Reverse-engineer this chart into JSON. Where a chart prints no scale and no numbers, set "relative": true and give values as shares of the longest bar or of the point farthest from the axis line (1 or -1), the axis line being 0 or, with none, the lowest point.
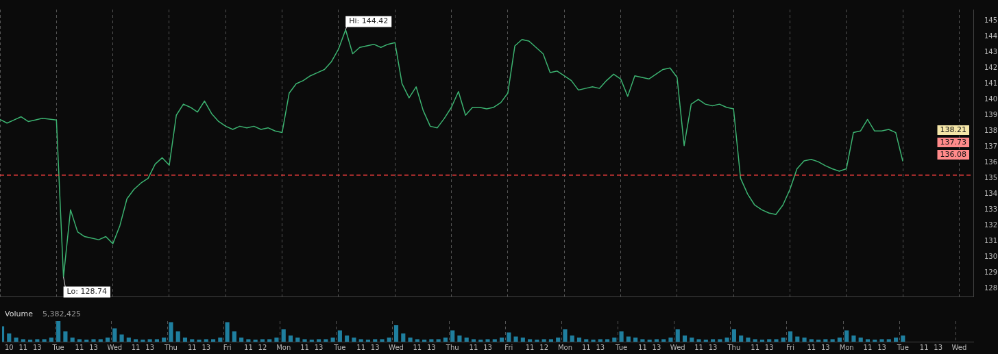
{
  "chart_data": [
    {
      "type": "line",
      "marker": "none",
      "tick_labels": "y",
      "grid": "x",
      "categories": [
        null,
        null,
        null,
        null,
        null,
        null,
        null,
        null,
        null,
        null,
        null,
        null,
        null,
        null,
        null,
        null,
        null,
        null,
        null,
        null,
        null,
        null,
        null,
        null,
        null,
        null,
        null,
        null,
        null,
        null,
        null,
        null,
        null,
        null,
        null,
        null,
        null,
        null,
        null,
        null,
        null,
        null,
        null,
        null,
        null,
        null,
        null,
        null,
        null,
        null,
        null,
        null,
        null,
        null,
        null,
        null,
        null,
        null,
        null,
        null,
        null,
        null,
        null,
        null,
        null,
        null,
        null,
        null,
        null,
        null,
        null,
        null,
        null,
        null,
        null,
        null,
        null,
        null,
        null,
        null,
        null,
        null,
        null,
        null,
        null,
        null,
        null,
        null,
        null,
        null,
        null,
        null,
        null,
        null,
        null,
        null,
        null,
        null,
        null,
        null,
        null,
        null,
        null,
        null,
        null,
        null,
        null,
        null,
        null,
        null,
        null,
        null,
        null,
        null,
        null,
        null,
        null,
        null,
        null,
        null,
        null,
        null,
        null,
        null,
        null,
        null,
        null,
        null,
        null,
        null,
        null,
        null,
        null,
        null,
        null,
        null,
        null,
        null,
        null
      ],
      "ylim": [
        127.5,
        145.7
      ],
      "yticks": [
        128,
        129,
        130,
        131,
        132,
        133,
        134,
        135,
        136,
        137,
        138,
        139,
        140,
        141,
        142,
        143,
        144,
        145
      ],
      "series": [
        {
          "color": "#3cb371",
          "values": [
            138.73,
            138.5,
            138.7,
            138.9,
            138.6,
            138.7,
            138.8,
            138.75,
            138.7,
            128.74,
            133.0,
            131.6,
            131.3,
            131.2,
            131.1,
            131.3,
            130.85,
            132.0,
            133.7,
            134.3,
            134.7,
            135.0,
            135.9,
            136.3,
            135.83,
            139.0,
            139.7,
            139.5,
            139.2,
            139.9,
            139.1,
            138.6,
            138.3,
            138.1,
            138.3,
            138.2,
            138.3,
            138.1,
            138.2,
            138.0,
            137.9,
            140.4,
            141.0,
            141.2,
            141.5,
            141.7,
            141.9,
            142.4,
            143.2,
            144.42,
            142.9,
            143.3,
            143.4,
            143.5,
            143.3,
            143.5,
            143.6,
            141.0,
            140.1,
            140.8,
            139.3,
            138.3,
            138.2,
            138.8,
            139.5,
            140.5,
            139.0,
            139.5,
            139.5,
            139.4,
            139.5,
            139.8,
            140.4,
            143.4,
            143.8,
            143.7,
            143.3,
            142.9,
            141.7,
            141.8,
            141.5,
            141.2,
            140.6,
            140.7,
            140.8,
            140.7,
            141.2,
            141.6,
            141.3,
            140.2,
            141.5,
            141.4,
            141.3,
            141.6,
            141.9,
            142.0,
            141.4,
            137.07,
            139.7,
            140.0,
            139.7,
            139.6,
            139.7,
            139.5,
            139.4,
            135.0,
            134.0,
            133.3,
            133.0,
            132.8,
            132.7,
            133.3,
            134.3,
            135.6,
            136.1,
            136.2,
            136.05,
            135.8,
            135.6,
            135.45,
            135.6,
            137.9,
            138.0,
            138.73,
            138.0,
            138.0,
            138.1,
            137.9,
            136.08,
            null,
            null,
            null,
            null,
            null,
            null,
            null,
            null,
            null,
            null
          ]
        }
      ],
      "ref_lines": [
        {
          "axis": "y",
          "value": 135.2,
          "color": "#ff4040",
          "line_style": "dashed"
        }
      ],
      "annotations": [
        "Hi: 144.42",
        "Lo: 128.74",
        "138.21",
        "137.73",
        "136.08"
      ]
    },
    {
      "type": "bar",
      "relative": true,
      "color": "#1f7f9f",
      "tick_labels": "x",
      "grid": "x",
      "categories": [
        null,
        "10",
        null,
        "11",
        null,
        "13",
        null,
        null,
        "Tue",
        null,
        null,
        "11",
        null,
        "13",
        null,
        null,
        "Wed",
        null,
        null,
        "11",
        null,
        "13",
        null,
        null,
        "Thu",
        null,
        null,
        "11",
        null,
        "13",
        null,
        null,
        "Fri",
        null,
        null,
        "11",
        null,
        "12",
        null,
        null,
        "Mon",
        null,
        null,
        "11",
        null,
        "13",
        null,
        null,
        "Tue",
        null,
        null,
        "11",
        null,
        "13",
        null,
        null,
        "Wed",
        null,
        null,
        "11",
        null,
        "13",
        null,
        null,
        "Thu",
        null,
        null,
        "11",
        null,
        "13",
        null,
        null,
        "Fri",
        null,
        null,
        "11",
        null,
        "12",
        null,
        null,
        "Mon",
        null,
        null,
        "11",
        null,
        "13",
        null,
        null,
        "Tue",
        null,
        null,
        "11",
        null,
        "13",
        null,
        null,
        "Wed",
        null,
        null,
        "11",
        null,
        "13",
        null,
        null,
        "Thu",
        null,
        null,
        "11",
        null,
        "13",
        null,
        null,
        "Fri",
        null,
        null,
        "11",
        null,
        "13",
        null,
        null,
        "Mon",
        null,
        null,
        "11",
        null,
        "13",
        null,
        null,
        "Tue",
        null,
        null,
        "11",
        null,
        "13",
        null,
        null,
        "Wed",
        null,
        null
      ],
      "values": [
        0.75,
        0.4,
        0.2,
        0.12,
        0.1,
        0.12,
        0.12,
        0.2,
        1.0,
        0.5,
        0.2,
        0.12,
        0.1,
        0.12,
        0.12,
        0.2,
        0.65,
        0.35,
        0.2,
        0.12,
        0.1,
        0.12,
        0.12,
        0.2,
        0.95,
        0.5,
        0.2,
        0.12,
        0.1,
        0.12,
        0.12,
        0.2,
        0.95,
        0.5,
        0.2,
        0.12,
        0.1,
        0.12,
        0.12,
        0.2,
        0.6,
        0.3,
        0.2,
        0.12,
        0.1,
        0.12,
        0.12,
        0.2,
        0.55,
        0.3,
        0.2,
        0.12,
        0.1,
        0.12,
        0.12,
        0.2,
        0.8,
        0.4,
        0.2,
        0.12,
        0.1,
        0.12,
        0.12,
        0.2,
        0.55,
        0.3,
        0.2,
        0.12,
        0.1,
        0.12,
        0.12,
        0.2,
        0.45,
        0.25,
        0.2,
        0.12,
        0.1,
        0.12,
        0.12,
        0.2,
        0.6,
        0.3,
        0.2,
        0.12,
        0.1,
        0.12,
        0.12,
        0.2,
        0.5,
        0.25,
        0.2,
        0.12,
        0.1,
        0.12,
        0.12,
        0.2,
        0.6,
        0.3,
        0.2,
        0.12,
        0.1,
        0.12,
        0.12,
        0.2,
        0.6,
        0.3,
        0.2,
        0.12,
        0.1,
        0.12,
        0.12,
        0.2,
        0.5,
        0.25,
        0.2,
        0.12,
        0.1,
        0.12,
        0.12,
        0.2,
        0.55,
        0.3,
        0.2,
        0.12,
        0.1,
        0.12,
        0.12,
        0.2,
        0.3,
        null,
        null,
        null,
        null,
        null,
        null,
        null,
        null,
        null,
        null
      ],
      "annotations": [
        "Volume",
        "5,382,425"
      ]
    }
  ]
}
